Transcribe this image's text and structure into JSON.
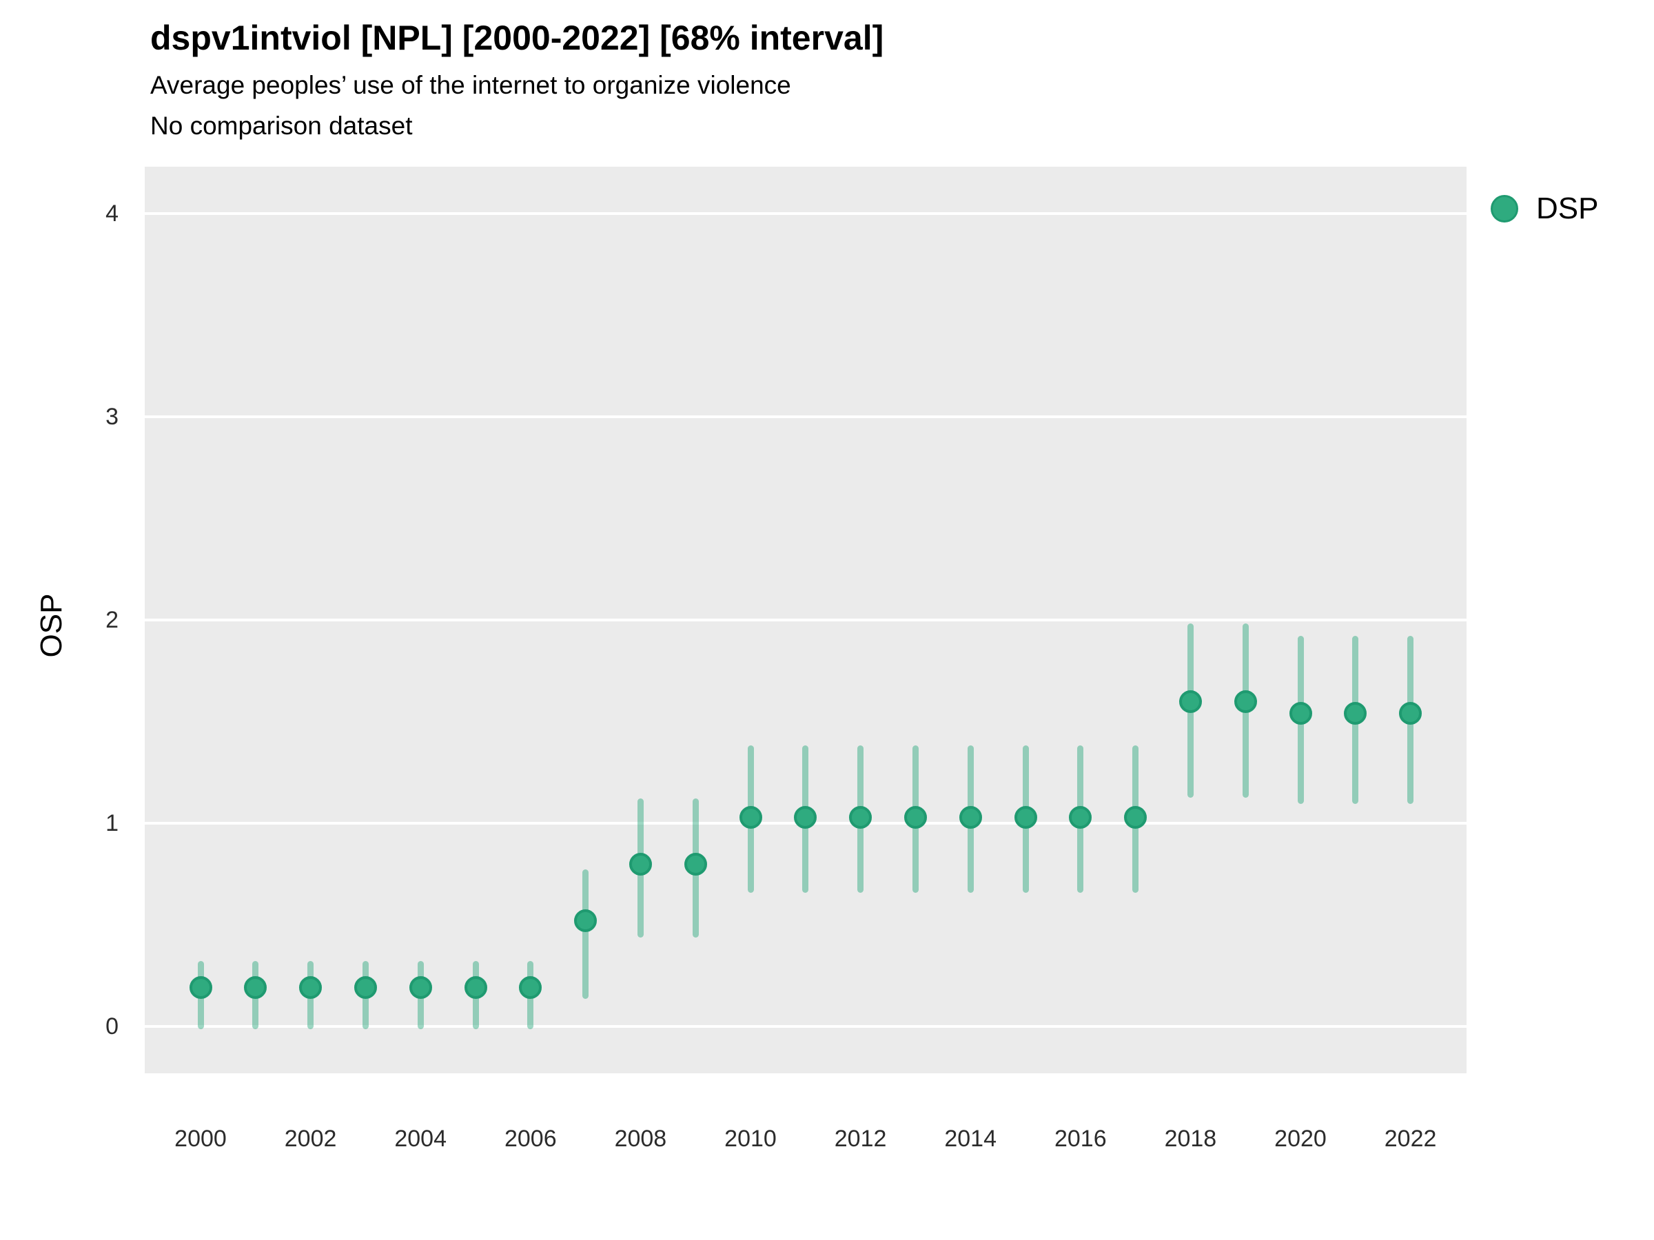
{
  "header": {
    "title": "dspv1intviol [NPL] [2000-2022] [68% interval]",
    "subtitle": "Average peoples’ use of the internet to organize violence",
    "note": "No comparison dataset"
  },
  "y_axis": {
    "title": "OSP",
    "ticks": [
      0,
      1,
      2,
      3,
      4
    ]
  },
  "x_axis": {
    "ticks": [
      2000,
      2002,
      2004,
      2006,
      2008,
      2010,
      2012,
      2014,
      2016,
      2018,
      2020,
      2022
    ]
  },
  "legend": {
    "position": "right-top",
    "items": [
      {
        "label": "DSP",
        "marker": "point-icon",
        "color": "#2FAB7F"
      }
    ]
  },
  "colors": {
    "point_fill": "#2FAB7F",
    "point_stroke": "#1F9A70",
    "interval_bar": "rgba(47,171,127,0.47)",
    "panel_background": "#EBEBEB",
    "gridline": "#FFFFFF",
    "text": "#000000",
    "tick_text": "#2b2b2b"
  },
  "chart_data": {
    "type": "pointrange",
    "title": "dspv1intviol [NPL] [2000-2022] [68% interval]",
    "subtitle": "Average peoples’ use of the internet to organize violence",
    "note": "No comparison dataset",
    "interval": "68%",
    "xlabel": "",
    "ylabel": "OSP",
    "ylim": [
      0,
      4
    ],
    "xlim": [
      2000,
      2022
    ],
    "grid": "major-horizontal-only",
    "legend_position": "right",
    "x": [
      2000,
      2001,
      2002,
      2003,
      2004,
      2005,
      2006,
      2007,
      2008,
      2009,
      2010,
      2011,
      2012,
      2013,
      2014,
      2015,
      2016,
      2017,
      2018,
      2019,
      2020,
      2021,
      2022
    ],
    "series": [
      {
        "name": "DSP",
        "estimates": [
          0.19,
          0.19,
          0.19,
          0.19,
          0.19,
          0.19,
          0.19,
          0.52,
          0.8,
          0.8,
          1.03,
          1.03,
          1.03,
          1.03,
          1.03,
          1.03,
          1.03,
          1.03,
          1.6,
          1.6,
          1.54,
          1.54,
          1.54
        ],
        "lower": [
          0.0,
          0.0,
          0.0,
          0.0,
          0.0,
          0.0,
          0.0,
          0.15,
          0.45,
          0.45,
          0.67,
          0.67,
          0.67,
          0.67,
          0.67,
          0.67,
          0.67,
          0.67,
          1.14,
          1.14,
          1.11,
          1.11,
          1.11
        ],
        "upper": [
          0.31,
          0.31,
          0.31,
          0.31,
          0.31,
          0.31,
          0.31,
          0.76,
          1.11,
          1.11,
          1.37,
          1.37,
          1.37,
          1.37,
          1.37,
          1.37,
          1.37,
          1.37,
          1.97,
          1.97,
          1.91,
          1.91,
          1.91
        ]
      }
    ]
  }
}
